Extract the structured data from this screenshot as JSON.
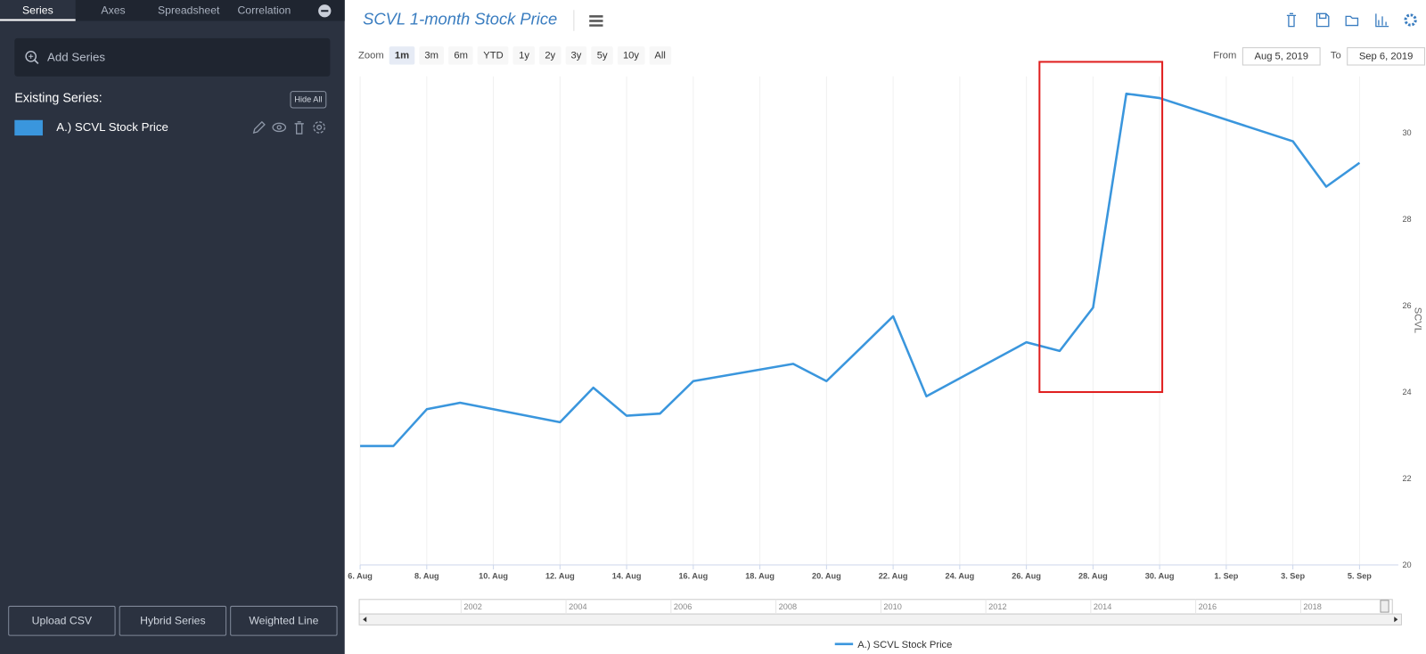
{
  "sidebar": {
    "tabs": [
      "Series",
      "Axes",
      "Spreadsheet",
      "Correlation"
    ],
    "add_series": "Add Series",
    "existing_label": "Existing Series:",
    "hide_all": "Hide All",
    "buttons": [
      "Upload CSV",
      "Hybrid Series",
      "Weighted Line"
    ]
  },
  "toolbar": {
    "zoom_label": "Zoom",
    "zoom_buttons": [
      "1m",
      "3m",
      "6m",
      "YTD",
      "1y",
      "2y",
      "3y",
      "5y",
      "10y",
      "All"
    ],
    "active_zoom": "1m",
    "from_label": "From",
    "from": "Aug 5, 2019",
    "to_label": "To",
    "to": "Sep 6, 2019"
  },
  "chart_data": {
    "type": "line",
    "title": "SCVL 1-month Stock Price",
    "y_label": "SCVL",
    "x": [
      "2019-08-06",
      "2019-08-07",
      "2019-08-08",
      "2019-08-09",
      "2019-08-12",
      "2019-08-13",
      "2019-08-14",
      "2019-08-15",
      "2019-08-16",
      "2019-08-19",
      "2019-08-20",
      "2019-08-21",
      "2019-08-22",
      "2019-08-23",
      "2019-08-26",
      "2019-08-27",
      "2019-08-28",
      "2019-08-29",
      "2019-08-30",
      "2019-09-03",
      "2019-09-04",
      "2019-09-05"
    ],
    "series": [
      {
        "name": "A.) SCVL Stock Price",
        "color": "#3a96dd",
        "values": [
          22.75,
          22.75,
          23.6,
          23.75,
          23.3,
          24.1,
          23.45,
          23.5,
          24.25,
          24.65,
          24.25,
          25.0,
          25.75,
          23.9,
          25.15,
          24.95,
          25.95,
          30.9,
          30.8,
          29.8,
          28.75,
          29.3
        ]
      }
    ],
    "xlim": [
      "2019-08-06",
      "2019-09-06"
    ],
    "xticks": [
      {
        "value": "2019-08-06",
        "label": "6. Aug"
      },
      {
        "value": "2019-08-08",
        "label": "8. Aug"
      },
      {
        "value": "2019-08-10",
        "label": "10. Aug"
      },
      {
        "value": "2019-08-12",
        "label": "12. Aug"
      },
      {
        "value": "2019-08-14",
        "label": "14. Aug"
      },
      {
        "value": "2019-08-16",
        "label": "16. Aug"
      },
      {
        "value": "2019-08-18",
        "label": "18. Aug"
      },
      {
        "value": "2019-08-20",
        "label": "20. Aug"
      },
      {
        "value": "2019-08-22",
        "label": "22. Aug"
      },
      {
        "value": "2019-08-24",
        "label": "24. Aug"
      },
      {
        "value": "2019-08-26",
        "label": "26. Aug"
      },
      {
        "value": "2019-08-28",
        "label": "28. Aug"
      },
      {
        "value": "2019-08-30",
        "label": "30. Aug"
      },
      {
        "value": "2019-09-01",
        "label": "1. Sep"
      },
      {
        "value": "2019-09-03",
        "label": "3. Sep"
      },
      {
        "value": "2019-09-05",
        "label": "5. Sep"
      }
    ],
    "ylim": [
      20,
      31.3
    ],
    "yticks": [
      20,
      22,
      24,
      26,
      28,
      30
    ],
    "grid": true,
    "navigator_labels": [
      "2002",
      "2004",
      "2006",
      "2008",
      "2010",
      "2012",
      "2014",
      "2016",
      "2018"
    ]
  }
}
